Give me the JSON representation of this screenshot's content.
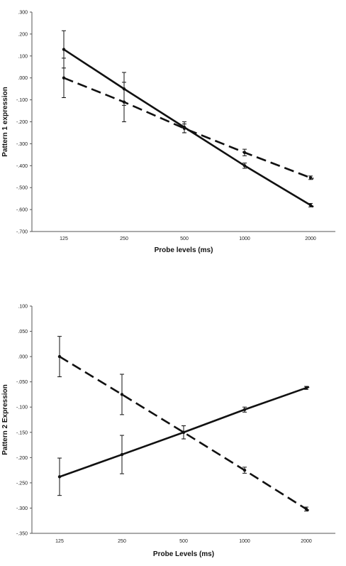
{
  "chart_data": [
    {
      "type": "line",
      "title": "",
      "xlabel": "Probe levels (ms)",
      "ylabel": "Pattern 1  expression",
      "categories": [
        "125",
        "250",
        "500",
        "1000",
        "2000"
      ],
      "y_tick_labels": [
        ".300",
        ".200",
        ".100",
        ".000",
        "-.100",
        "-.200",
        "-.300",
        "-.400",
        "-.500",
        "-.600",
        "-.700"
      ],
      "ylim": [
        -0.7,
        0.3
      ],
      "grid": false,
      "legend": "none",
      "series": [
        {
          "style": "solid",
          "values": [
            0.13,
            -0.05,
            -0.225,
            -0.4,
            -0.58
          ],
          "errors": [
            0.085,
            0.075,
            0.025,
            0.012,
            0.008
          ]
        },
        {
          "style": "dashed",
          "values": [
            0.0,
            -0.11,
            -0.23,
            -0.34,
            -0.455
          ],
          "errors": [
            0.09,
            0.09,
            0.02,
            0.015,
            0.008
          ]
        }
      ]
    },
    {
      "type": "line",
      "title": "",
      "xlabel": "Probe Levels (ms)",
      "ylabel": "Pattern 2 Expression",
      "categories": [
        "125",
        "250",
        "500",
        "1000",
        "2000"
      ],
      "y_tick_labels": [
        ".100",
        ".050",
        ".000",
        "-.050",
        "-.100",
        "-.150",
        "-.200",
        "-.250",
        "-.300",
        "-.350"
      ],
      "ylim": [
        -0.35,
        0.1
      ],
      "grid": false,
      "legend": "none",
      "series": [
        {
          "style": "solid",
          "values": [
            -0.238,
            -0.194,
            -0.15,
            -0.105,
            -0.062
          ],
          "errors": [
            0.037,
            0.038,
            0.013,
            0.005,
            0.003
          ]
        },
        {
          "style": "dashed",
          "values": [
            0.0,
            -0.075,
            -0.15,
            -0.225,
            -0.302
          ],
          "errors": [
            0.04,
            0.04,
            0.013,
            0.006,
            0.004
          ]
        }
      ]
    }
  ]
}
